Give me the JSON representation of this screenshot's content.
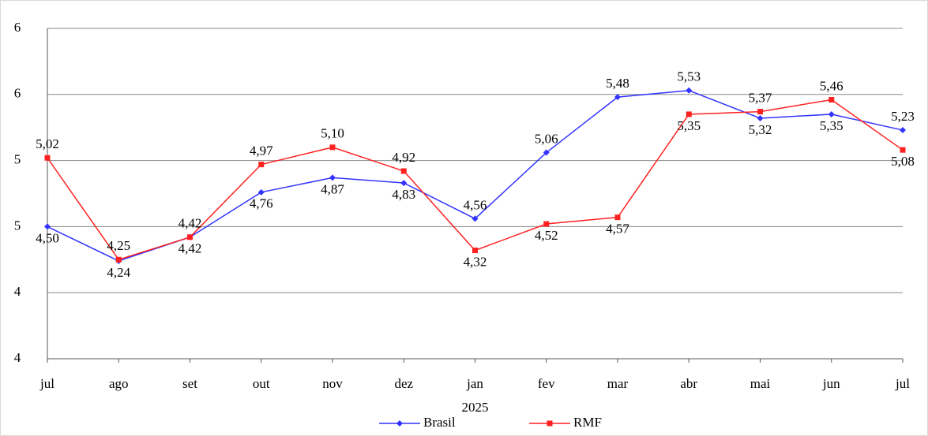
{
  "chart_data": {
    "type": "line",
    "categories": [
      "jul",
      "ago",
      "set",
      "out",
      "nov",
      "dez",
      "jan",
      "fev",
      "mar",
      "abr",
      "mai",
      "jun",
      "jul"
    ],
    "annotations": [
      "2025"
    ],
    "ylim": [
      3.5,
      6.0
    ],
    "yticks": [
      {
        "value": 3.5,
        "label": "4"
      },
      {
        "value": 4.0,
        "label": "4"
      },
      {
        "value": 4.5,
        "label": "5"
      },
      {
        "value": 5.0,
        "label": "5"
      },
      {
        "value": 5.5,
        "label": "6"
      },
      {
        "value": 6.0,
        "label": "6"
      }
    ],
    "grid": true,
    "legend": "bottom",
    "series": [
      {
        "name": "Brasil",
        "color": "#3333ff",
        "marker": "diamond",
        "values": [
          4.5,
          4.24,
          4.42,
          4.76,
          4.87,
          4.83,
          4.56,
          5.06,
          5.48,
          5.53,
          5.32,
          5.35,
          5.23
        ],
        "value_labels": [
          "4,50",
          "4,24",
          "4,42",
          "4,76",
          "4,87",
          "4,83",
          "4,56",
          "5,06",
          "5,48",
          "5,53",
          "5,32",
          "5,35",
          "5,23"
        ]
      },
      {
        "name": "RMF",
        "color": "#ff2020",
        "marker": "square",
        "values": [
          5.02,
          4.25,
          4.42,
          4.97,
          5.1,
          4.92,
          4.32,
          4.52,
          4.57,
          5.35,
          5.37,
          5.46,
          5.08
        ],
        "value_labels": [
          "5,02",
          "4,25",
          "4,42",
          "4,97",
          "5,10",
          "4,92",
          "4,32",
          "4,52",
          "4,57",
          "5,35",
          "5,37",
          "5,46",
          "5,08"
        ]
      }
    ]
  }
}
